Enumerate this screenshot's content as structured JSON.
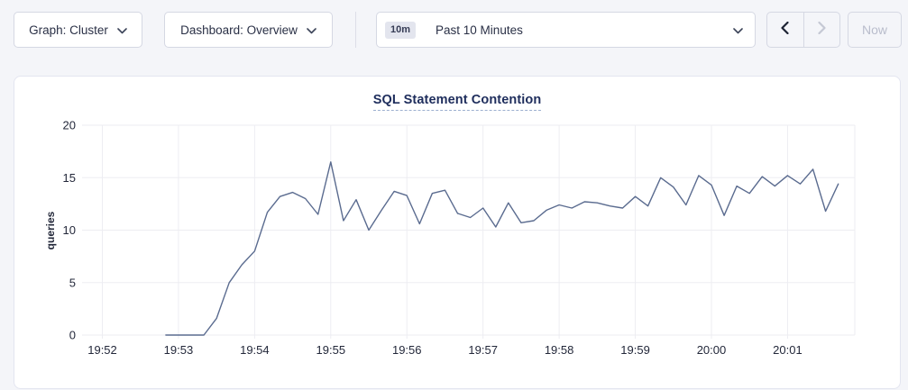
{
  "toolbar": {
    "graph_dropdown": {
      "label": "Graph: Cluster"
    },
    "dashboard_dropdown": {
      "label": "Dashboard: Overview"
    },
    "time_window": {
      "badge": "10m",
      "label": "Past 10 Minutes"
    },
    "now_button": {
      "label": "Now",
      "disabled": true
    },
    "prev_enabled": true,
    "next_enabled": false
  },
  "colors": {
    "page_bg": "#f4f5f9",
    "panel_bg": "#ffffff",
    "grid": "#ededf2",
    "line": "#5a6b8f",
    "title": "#1e2d5c",
    "tick_text": "#23283a",
    "disabled_text": "#b9bdcc"
  },
  "chart_data": {
    "type": "line",
    "title": "SQL Statement Contention",
    "ylabel": "queries",
    "ylim": [
      0,
      20
    ],
    "y_ticks": [
      0,
      5,
      10,
      15,
      20
    ],
    "x_ticks": [
      "19:52",
      "19:53",
      "19:54",
      "19:55",
      "19:56",
      "19:57",
      "19:58",
      "19:59",
      "20:00",
      "20:01"
    ],
    "x_range": [
      "19:51:44",
      "20:01:53"
    ],
    "grid": true,
    "legend": "none",
    "line_color": "#5a6b8f",
    "series": [
      {
        "name": "queries",
        "points": [
          [
            "19:52:50",
            0
          ],
          [
            "19:53:00",
            0
          ],
          [
            "19:53:10",
            0
          ],
          [
            "19:53:20",
            0
          ],
          [
            "19:53:30",
            1.6
          ],
          [
            "19:53:40",
            5
          ],
          [
            "19:53:50",
            6.7
          ],
          [
            "19:54:00",
            8
          ],
          [
            "19:54:10",
            11.7
          ],
          [
            "19:54:20",
            13.2
          ],
          [
            "19:54:30",
            13.6
          ],
          [
            "19:54:40",
            13
          ],
          [
            "19:54:50",
            11.5
          ],
          [
            "19:55:00",
            16.5
          ],
          [
            "19:55:10",
            10.9
          ],
          [
            "19:55:20",
            12.9
          ],
          [
            "19:55:30",
            10
          ],
          [
            "19:55:40",
            11.9
          ],
          [
            "19:55:50",
            13.7
          ],
          [
            "19:56:00",
            13.3
          ],
          [
            "19:56:10",
            10.6
          ],
          [
            "19:56:20",
            13.5
          ],
          [
            "19:56:30",
            13.8
          ],
          [
            "19:56:40",
            11.6
          ],
          [
            "19:56:50",
            11.2
          ],
          [
            "19:57:00",
            12.1
          ],
          [
            "19:57:10",
            10.3
          ],
          [
            "19:57:20",
            12.6
          ],
          [
            "19:57:30",
            10.7
          ],
          [
            "19:57:40",
            10.9
          ],
          [
            "19:57:50",
            11.9
          ],
          [
            "19:58:00",
            12.4
          ],
          [
            "19:58:10",
            12.1
          ],
          [
            "19:58:20",
            12.7
          ],
          [
            "19:58:30",
            12.6
          ],
          [
            "19:58:40",
            12.3
          ],
          [
            "19:58:50",
            12.1
          ],
          [
            "19:59:00",
            13.2
          ],
          [
            "19:59:10",
            12.3
          ],
          [
            "19:59:20",
            15
          ],
          [
            "19:59:30",
            14.1
          ],
          [
            "19:59:40",
            12.4
          ],
          [
            "19:59:50",
            15.2
          ],
          [
            "20:00:00",
            14.3
          ],
          [
            "20:00:10",
            11.4
          ],
          [
            "20:00:20",
            14.2
          ],
          [
            "20:00:30",
            13.5
          ],
          [
            "20:00:40",
            15.1
          ],
          [
            "20:00:50",
            14.2
          ],
          [
            "20:01:00",
            15.2
          ],
          [
            "20:01:10",
            14.4
          ],
          [
            "20:01:20",
            15.8
          ],
          [
            "20:01:30",
            11.8
          ],
          [
            "20:01:40",
            14.4
          ]
        ]
      }
    ]
  }
}
